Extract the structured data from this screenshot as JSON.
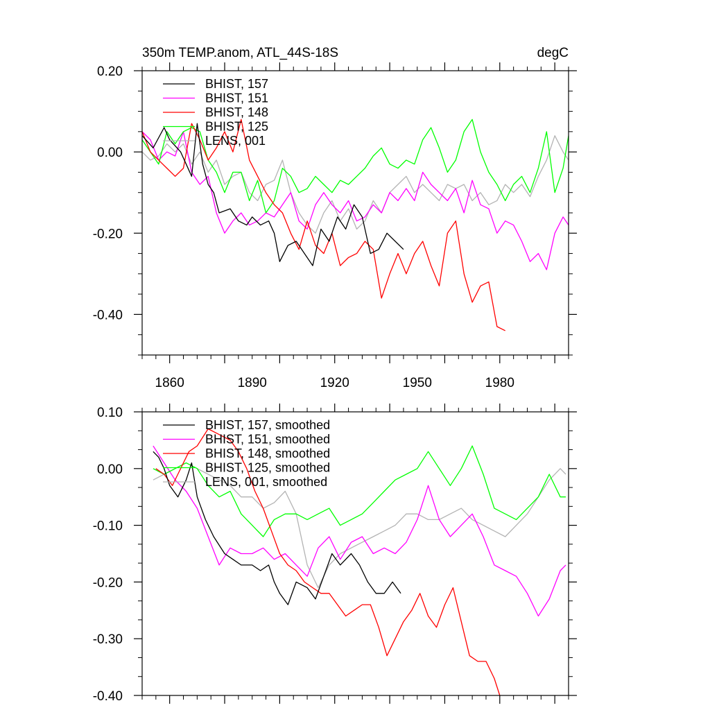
{
  "chart_data": [
    {
      "type": "line",
      "title": "350m TEMP.anom, ATL_44S-18S",
      "units": "degC",
      "xlim": [
        1850,
        2005
      ],
      "ylim": [
        -0.5,
        0.2
      ],
      "yticks": [
        "0.20",
        "0.00",
        "-0.20",
        "-0.40"
      ],
      "yticks_values": [
        0.2,
        0.0,
        -0.2,
        -0.4
      ],
      "xticks": [
        "1860",
        "1890",
        "1920",
        "1950",
        "1980"
      ],
      "xticks_values": [
        1860,
        1890,
        1920,
        1950,
        1980
      ],
      "series": [
        {
          "name": "BHIST, 157",
          "color": "#000000",
          "x": [
            1850,
            1854,
            1858,
            1860,
            1864,
            1866,
            1868,
            1870,
            1872,
            1874,
            1876,
            1878,
            1882,
            1885,
            1888,
            1890,
            1893,
            1896,
            1898,
            1900,
            1903,
            1906,
            1909,
            1912,
            1915,
            1918,
            1921,
            1924,
            1927,
            1930,
            1933,
            1936,
            1939,
            1942,
            1945
          ],
          "values": [
            0.04,
            0.01,
            0.06,
            0.03,
            0.0,
            -0.03,
            -0.06,
            0.07,
            -0.03,
            -0.08,
            -0.1,
            -0.15,
            -0.14,
            -0.17,
            -0.18,
            -0.16,
            -0.18,
            -0.17,
            -0.2,
            -0.27,
            -0.23,
            -0.22,
            -0.25,
            -0.28,
            -0.19,
            -0.22,
            -0.16,
            -0.19,
            -0.13,
            -0.16,
            -0.25,
            -0.24,
            -0.2,
            -0.22,
            -0.24
          ]
        },
        {
          "name": "BHIST, 151",
          "color": "#ff00ff",
          "x": [
            1850,
            1853,
            1856,
            1859,
            1862,
            1865,
            1868,
            1871,
            1874,
            1877,
            1880,
            1883,
            1886,
            1889,
            1892,
            1895,
            1898,
            1901,
            1904,
            1907,
            1910,
            1913,
            1916,
            1919,
            1922,
            1925,
            1928,
            1931,
            1934,
            1937,
            1940,
            1943,
            1946,
            1949,
            1952,
            1955,
            1958,
            1961,
            1964,
            1967,
            1970,
            1973,
            1976,
            1979,
            1982,
            1985,
            1988,
            1991,
            1994,
            1997,
            2000,
            2003,
            2005
          ],
          "values": [
            0.05,
            0.03,
            -0.02,
            0.0,
            -0.01,
            0.05,
            -0.05,
            -0.08,
            -0.06,
            -0.15,
            -0.2,
            -0.17,
            -0.15,
            -0.18,
            -0.17,
            -0.15,
            -0.16,
            -0.13,
            -0.1,
            -0.17,
            -0.19,
            -0.13,
            -0.1,
            -0.13,
            -0.15,
            -0.12,
            -0.17,
            -0.16,
            -0.13,
            -0.15,
            -0.1,
            -0.12,
            -0.09,
            -0.12,
            -0.05,
            -0.08,
            -0.1,
            -0.12,
            -0.09,
            -0.15,
            -0.07,
            -0.13,
            -0.14,
            -0.2,
            -0.17,
            -0.18,
            -0.22,
            -0.27,
            -0.25,
            -0.29,
            -0.2,
            -0.16,
            -0.18
          ]
        },
        {
          "name": "BHIST, 148",
          "color": "#ff0000",
          "x": [
            1850,
            1853,
            1856,
            1859,
            1862,
            1865,
            1868,
            1871,
            1874,
            1877,
            1880,
            1883,
            1886,
            1889,
            1892,
            1895,
            1898,
            1901,
            1904,
            1907,
            1910,
            1913,
            1916,
            1919,
            1922,
            1925,
            1928,
            1931,
            1934,
            1937,
            1940,
            1943,
            1946,
            1949,
            1952,
            1955,
            1958,
            1961,
            1964,
            1967,
            1970,
            1973,
            1976,
            1979,
            1982
          ],
          "values": [
            0.05,
            0.0,
            -0.02,
            -0.04,
            -0.06,
            -0.04,
            0.07,
            0.03,
            -0.02,
            0.01,
            0.05,
            0.0,
            0.08,
            -0.02,
            -0.06,
            -0.1,
            -0.13,
            -0.15,
            -0.2,
            -0.24,
            -0.17,
            -0.23,
            -0.25,
            -0.2,
            -0.28,
            -0.26,
            -0.25,
            -0.22,
            -0.24,
            -0.36,
            -0.3,
            -0.25,
            -0.3,
            -0.25,
            -0.22,
            -0.28,
            -0.33,
            -0.2,
            -0.17,
            -0.3,
            -0.37,
            -0.33,
            -0.32,
            -0.43,
            -0.44
          ]
        },
        {
          "name": "BHIST, 125",
          "color": "#00ff00",
          "x": [
            1850,
            1853,
            1856,
            1859,
            1862,
            1865,
            1868,
            1871,
            1874,
            1877,
            1880,
            1883,
            1886,
            1889,
            1892,
            1895,
            1898,
            1901,
            1904,
            1907,
            1910,
            1913,
            1916,
            1919,
            1922,
            1925,
            1928,
            1931,
            1934,
            1937,
            1940,
            1943,
            1946,
            1949,
            1952,
            1955,
            1958,
            1961,
            1964,
            1967,
            1970,
            1973,
            1976,
            1979,
            1982,
            1985,
            1988,
            1991,
            1994,
            1997,
            2000,
            2003,
            2005
          ],
          "values": [
            0.03,
            0.0,
            -0.03,
            0.05,
            0.02,
            0.05,
            0.06,
            0.05,
            -0.02,
            -0.05,
            -0.1,
            -0.05,
            -0.05,
            -0.12,
            -0.07,
            -0.15,
            -0.12,
            -0.04,
            -0.06,
            -0.1,
            -0.09,
            -0.06,
            -0.08,
            -0.1,
            -0.07,
            -0.08,
            -0.06,
            -0.04,
            -0.01,
            0.01,
            -0.03,
            -0.04,
            -0.02,
            -0.03,
            0.03,
            0.06,
            0.01,
            -0.05,
            -0.02,
            0.05,
            0.08,
            0.0,
            -0.05,
            -0.08,
            -0.12,
            -0.08,
            -0.06,
            -0.1,
            -0.04,
            0.05,
            -0.1,
            -0.04,
            0.04
          ]
        },
        {
          "name": "LENS, 001",
          "color": "#b3b3b3",
          "x": [
            1850,
            1853,
            1856,
            1859,
            1862,
            1865,
            1868,
            1871,
            1874,
            1877,
            1880,
            1883,
            1886,
            1889,
            1892,
            1895,
            1898,
            1901,
            1904,
            1907,
            1910,
            1913,
            1916,
            1919,
            1922,
            1925,
            1928,
            1931,
            1934,
            1937,
            1940,
            1943,
            1946,
            1949,
            1952,
            1955,
            1958,
            1961,
            1964,
            1967,
            1970,
            1973,
            1976,
            1979,
            1982,
            1985,
            1988,
            1991,
            1994,
            1997,
            2000,
            2003,
            2005
          ],
          "values": [
            0.0,
            -0.02,
            -0.01,
            0.02,
            0.0,
            0.02,
            -0.03,
            0.0,
            -0.05,
            -0.02,
            -0.08,
            -0.06,
            -0.05,
            -0.1,
            -0.12,
            -0.08,
            -0.07,
            -0.02,
            -0.1,
            -0.15,
            -0.18,
            -0.2,
            -0.15,
            -0.12,
            -0.17,
            -0.14,
            -0.19,
            -0.17,
            -0.12,
            -0.15,
            -0.1,
            -0.08,
            -0.06,
            -0.1,
            -0.08,
            -0.1,
            -0.12,
            -0.08,
            -0.09,
            -0.08,
            -0.12,
            -0.1,
            -0.13,
            -0.12,
            -0.08,
            -0.1,
            -0.08,
            -0.11,
            -0.06,
            -0.02,
            0.04,
            0.0,
            -0.02
          ]
        }
      ]
    },
    {
      "type": "line",
      "title": "",
      "xlim": [
        1850,
        2005
      ],
      "ylim": [
        -0.4,
        0.1
      ],
      "yticks": [
        "0.10",
        "0.00",
        "-0.10",
        "-0.20",
        "-0.30",
        "-0.40"
      ],
      "yticks_values": [
        0.1,
        0.0,
        -0.1,
        -0.2,
        -0.3,
        -0.4
      ],
      "series": [
        {
          "name": "BHIST, 157, smoothed",
          "color": "#000000",
          "x": [
            1854,
            1856,
            1858,
            1860,
            1863,
            1866,
            1868,
            1870,
            1873,
            1876,
            1880,
            1883,
            1886,
            1890,
            1893,
            1896,
            1898,
            1900,
            1903,
            1906,
            1910,
            1913,
            1916,
            1919,
            1922,
            1926,
            1929,
            1932,
            1935,
            1938,
            1941,
            1944
          ],
          "values": [
            0.03,
            0.02,
            0.0,
            -0.03,
            -0.05,
            -0.02,
            0.01,
            -0.05,
            -0.09,
            -0.12,
            -0.15,
            -0.16,
            -0.17,
            -0.17,
            -0.18,
            -0.17,
            -0.2,
            -0.22,
            -0.24,
            -0.2,
            -0.21,
            -0.23,
            -0.19,
            -0.15,
            -0.17,
            -0.15,
            -0.17,
            -0.2,
            -0.22,
            -0.22,
            -0.2,
            -0.22
          ]
        },
        {
          "name": "BHIST, 151, smoothed",
          "color": "#ff00ff",
          "x": [
            1854,
            1858,
            1862,
            1866,
            1870,
            1874,
            1878,
            1882,
            1886,
            1890,
            1894,
            1898,
            1902,
            1906,
            1910,
            1914,
            1918,
            1922,
            1926,
            1930,
            1934,
            1938,
            1942,
            1946,
            1950,
            1954,
            1958,
            1962,
            1966,
            1970,
            1974,
            1978,
            1982,
            1986,
            1990,
            1994,
            1998,
            2002,
            2004
          ],
          "values": [
            0.04,
            0.01,
            -0.02,
            -0.04,
            -0.07,
            -0.12,
            -0.17,
            -0.14,
            -0.15,
            -0.15,
            -0.14,
            -0.16,
            -0.15,
            -0.17,
            -0.19,
            -0.14,
            -0.12,
            -0.16,
            -0.13,
            -0.12,
            -0.15,
            -0.14,
            -0.15,
            -0.13,
            -0.09,
            -0.03,
            -0.09,
            -0.12,
            -0.1,
            -0.08,
            -0.12,
            -0.17,
            -0.18,
            -0.19,
            -0.22,
            -0.26,
            -0.23,
            -0.18,
            -0.17
          ]
        },
        {
          "name": "BHIST, 148, smoothed",
          "color": "#ff0000",
          "x": [
            1855,
            1858,
            1861,
            1864,
            1867,
            1870,
            1874,
            1878,
            1882,
            1885,
            1888,
            1891,
            1894,
            1897,
            1900,
            1903,
            1906,
            1909,
            1912,
            1915,
            1918,
            1921,
            1924,
            1927,
            1930,
            1933,
            1936,
            1939,
            1942,
            1945,
            1948,
            1951,
            1954,
            1957,
            1960,
            1963,
            1966,
            1969,
            1972,
            1975,
            1978,
            1980
          ],
          "values": [
            0.0,
            -0.01,
            -0.03,
            0.0,
            0.03,
            0.04,
            0.07,
            0.06,
            0.05,
            0.03,
            0.0,
            -0.04,
            -0.07,
            -0.11,
            -0.15,
            -0.17,
            -0.18,
            -0.2,
            -0.21,
            -0.22,
            -0.22,
            -0.24,
            -0.26,
            -0.25,
            -0.24,
            -0.24,
            -0.28,
            -0.33,
            -0.3,
            -0.27,
            -0.25,
            -0.22,
            -0.26,
            -0.28,
            -0.24,
            -0.21,
            -0.27,
            -0.33,
            -0.34,
            -0.34,
            -0.37,
            -0.4
          ]
        },
        {
          "name": "BHIST, 125, smoothed",
          "color": "#00ff00",
          "x": [
            1854,
            1858,
            1862,
            1866,
            1870,
            1874,
            1878,
            1882,
            1886,
            1890,
            1894,
            1898,
            1902,
            1906,
            1910,
            1914,
            1918,
            1922,
            1926,
            1930,
            1934,
            1938,
            1942,
            1946,
            1950,
            1954,
            1958,
            1962,
            1966,
            1970,
            1974,
            1978,
            1982,
            1986,
            1990,
            1994,
            1998,
            2002,
            2004
          ],
          "values": [
            0.0,
            -0.01,
            0.0,
            0.01,
            0.0,
            -0.03,
            -0.05,
            -0.04,
            -0.08,
            -0.1,
            -0.12,
            -0.09,
            -0.08,
            -0.08,
            -0.09,
            -0.08,
            -0.07,
            -0.1,
            -0.09,
            -0.08,
            -0.06,
            -0.04,
            -0.02,
            -0.01,
            0.0,
            0.03,
            0.0,
            -0.03,
            0.0,
            0.04,
            -0.01,
            -0.07,
            -0.08,
            -0.09,
            -0.07,
            -0.05,
            -0.01,
            -0.05,
            -0.05
          ]
        },
        {
          "name": "LENS, 001, smoothed",
          "color": "#b3b3b3",
          "x": [
            1854,
            1858,
            1862,
            1866,
            1870,
            1874,
            1878,
            1882,
            1886,
            1890,
            1894,
            1898,
            1902,
            1906,
            1910,
            1914,
            1918,
            1922,
            1926,
            1930,
            1934,
            1938,
            1942,
            1946,
            1950,
            1954,
            1958,
            1962,
            1966,
            1970,
            1974,
            1978,
            1982,
            1986,
            1990,
            1994,
            1998,
            2002,
            2004
          ],
          "values": [
            -0.02,
            -0.01,
            0.0,
            0.01,
            0.0,
            -0.01,
            -0.02,
            -0.03,
            -0.05,
            -0.05,
            -0.07,
            -0.06,
            -0.04,
            -0.08,
            -0.17,
            -0.21,
            -0.17,
            -0.15,
            -0.14,
            -0.13,
            -0.12,
            -0.11,
            -0.1,
            -0.08,
            -0.08,
            -0.09,
            -0.09,
            -0.08,
            -0.07,
            -0.09,
            -0.1,
            -0.11,
            -0.12,
            -0.1,
            -0.08,
            -0.05,
            -0.02,
            0.0,
            -0.01
          ]
        }
      ]
    }
  ]
}
